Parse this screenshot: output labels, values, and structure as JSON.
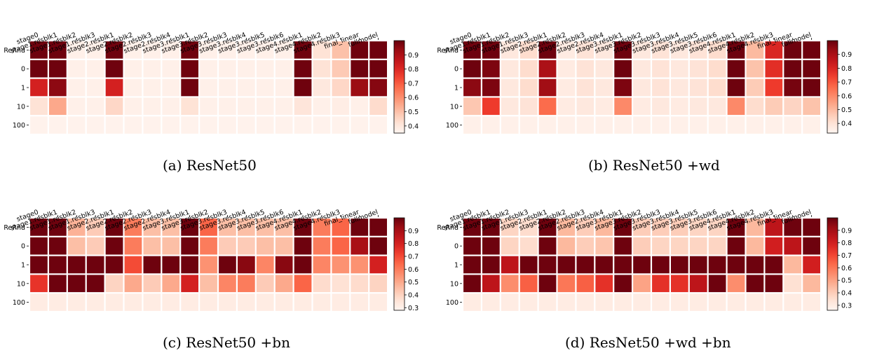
{
  "figure": {
    "panels": [
      {
        "caption": "(a) ResNet50"
      },
      {
        "caption": "(b) ResNet50 +wd"
      },
      {
        "caption": "(c) ResNet50 +bn"
      },
      {
        "caption": "(d) ResNet50 +wd +bn"
      }
    ]
  },
  "chart_data": [
    {
      "type": "heatmap",
      "title": "(a) ResNet50",
      "categories": [
        "stage0",
        "stage1.resblk1",
        "stage1.resblk2",
        "stage1.resblk3",
        "stage2.resblk1",
        "stage2.resblk2",
        "stage2.resblk3",
        "stage2.resblk4",
        "stage3.resblk1",
        "stage3.resblk2",
        "stage3.resblk3",
        "stage3.resblk4",
        "stage3.resblk5",
        "stage3.resblk6",
        "stage4.resblk1",
        "stage4.resblk2",
        "stage4.resblk3",
        "final_linear",
        "fullmodel"
      ],
      "rows": [
        "ReRnd",
        "0",
        "1",
        "10",
        "100"
      ],
      "colorbar": {
        "min": 0.35,
        "max": 1.0,
        "ticks": [
          0.4,
          0.5,
          0.6,
          0.7,
          0.8,
          0.9
        ]
      },
      "values": [
        [
          0.99,
          0.99,
          0.37,
          0.37,
          0.99,
          0.37,
          0.37,
          0.37,
          0.99,
          0.37,
          0.37,
          0.37,
          0.37,
          0.37,
          0.99,
          0.42,
          0.5,
          0.99,
          0.99
        ],
        [
          0.99,
          0.99,
          0.37,
          0.37,
          0.99,
          0.37,
          0.37,
          0.37,
          0.99,
          0.37,
          0.37,
          0.37,
          0.37,
          0.37,
          0.99,
          0.42,
          0.48,
          0.99,
          0.99
        ],
        [
          0.82,
          0.95,
          0.37,
          0.37,
          0.82,
          0.37,
          0.37,
          0.37,
          0.99,
          0.37,
          0.37,
          0.37,
          0.37,
          0.37,
          0.99,
          0.4,
          0.45,
          0.93,
          0.96
        ],
        [
          0.42,
          0.55,
          0.37,
          0.37,
          0.45,
          0.37,
          0.37,
          0.37,
          0.42,
          0.37,
          0.37,
          0.37,
          0.37,
          0.37,
          0.41,
          0.37,
          0.38,
          0.37,
          0.44
        ],
        [
          0.36,
          0.36,
          0.36,
          0.36,
          0.36,
          0.36,
          0.36,
          0.36,
          0.36,
          0.36,
          0.36,
          0.36,
          0.36,
          0.36,
          0.36,
          0.36,
          0.36,
          0.36,
          0.36
        ]
      ],
      "cmap": "Reds"
    },
    {
      "type": "heatmap",
      "title": "(b) ResNet50 +wd",
      "categories": [
        "stage0",
        "stage1.resblk1",
        "stage1.resblk2",
        "stage1.resblk3",
        "stage2.resblk1",
        "stage2.resblk2",
        "stage2.resblk3",
        "stage2.resblk4",
        "stage3.resblk1",
        "stage3.resblk2",
        "stage3.resblk3",
        "stage3.resblk4",
        "stage3.resblk5",
        "stage3.resblk6",
        "stage4.resblk1",
        "stage4.resblk2",
        "stage4.resblk3",
        "final_linear",
        "fullmodel"
      ],
      "rows": [
        "ReRnd",
        "0",
        "1",
        "10",
        "100"
      ],
      "colorbar": {
        "min": 0.33,
        "max": 1.0,
        "ticks": [
          0.4,
          0.5,
          0.6,
          0.7,
          0.8,
          0.9
        ]
      },
      "values": [
        [
          0.99,
          0.99,
          0.38,
          0.42,
          0.99,
          0.37,
          0.4,
          0.38,
          0.99,
          0.38,
          0.4,
          0.38,
          0.4,
          0.42,
          0.99,
          0.5,
          0.8,
          0.99,
          0.99
        ],
        [
          0.99,
          0.97,
          0.38,
          0.42,
          0.9,
          0.37,
          0.4,
          0.38,
          0.99,
          0.38,
          0.4,
          0.38,
          0.4,
          0.42,
          0.99,
          0.48,
          0.78,
          0.99,
          0.99
        ],
        [
          0.95,
          0.97,
          0.38,
          0.42,
          0.92,
          0.37,
          0.4,
          0.38,
          0.97,
          0.38,
          0.4,
          0.38,
          0.4,
          0.42,
          0.99,
          0.46,
          0.75,
          0.98,
          0.99
        ],
        [
          0.47,
          0.75,
          0.38,
          0.4,
          0.66,
          0.37,
          0.38,
          0.37,
          0.6,
          0.37,
          0.38,
          0.37,
          0.38,
          0.38,
          0.6,
          0.42,
          0.46,
          0.44,
          0.48
        ],
        [
          0.35,
          0.35,
          0.35,
          0.35,
          0.35,
          0.35,
          0.35,
          0.35,
          0.35,
          0.35,
          0.35,
          0.35,
          0.35,
          0.35,
          0.35,
          0.35,
          0.35,
          0.35,
          0.35
        ]
      ],
      "cmap": "Reds"
    },
    {
      "type": "heatmap",
      "title": "(c) ResNet50 +bn",
      "categories": [
        "stage0",
        "stage1.resblk1",
        "stage1.resblk2",
        "stage1.resblk3",
        "stage2.resblk1",
        "stage2.resblk2",
        "stage2.resblk3",
        "stage2.resblk4",
        "stage3.resblk1",
        "stage3.resblk2",
        "stage3.resblk3",
        "stage3.resblk4",
        "stage3.resblk5",
        "stage3.resblk6",
        "stage4.resblk1",
        "stage4.resblk2",
        "stage4.resblk3",
        "final_linear",
        "fullmodel"
      ],
      "rows": [
        "ReRnd",
        "0",
        "1",
        "10",
        "100"
      ],
      "colorbar": {
        "min": 0.28,
        "max": 1.0,
        "ticks": [
          0.3,
          0.4,
          0.5,
          0.6,
          0.7,
          0.8,
          0.9
        ]
      },
      "values": [
        [
          0.99,
          0.99,
          0.48,
          0.42,
          0.99,
          0.6,
          0.45,
          0.45,
          0.99,
          0.65,
          0.45,
          0.45,
          0.45,
          0.45,
          0.99,
          0.6,
          0.65,
          0.99,
          0.99
        ],
        [
          0.99,
          0.99,
          0.45,
          0.42,
          0.99,
          0.6,
          0.45,
          0.45,
          0.99,
          0.6,
          0.42,
          0.42,
          0.45,
          0.45,
          0.99,
          0.6,
          0.65,
          0.9,
          0.99
        ],
        [
          0.99,
          0.99,
          0.99,
          0.99,
          0.99,
          0.7,
          0.99,
          0.99,
          0.99,
          0.55,
          0.99,
          0.95,
          0.58,
          0.95,
          0.99,
          0.58,
          0.55,
          0.55,
          0.8
        ],
        [
          0.75,
          0.99,
          0.99,
          0.99,
          0.4,
          0.5,
          0.42,
          0.5,
          0.8,
          0.45,
          0.58,
          0.6,
          0.42,
          0.5,
          0.65,
          0.38,
          0.36,
          0.38,
          0.4
        ],
        [
          0.32,
          0.32,
          0.32,
          0.32,
          0.32,
          0.32,
          0.32,
          0.32,
          0.32,
          0.32,
          0.32,
          0.32,
          0.32,
          0.32,
          0.32,
          0.32,
          0.32,
          0.32,
          0.32
        ]
      ],
      "cmap": "Reds"
    },
    {
      "type": "heatmap",
      "title": "(d) ResNet50 +wd +bn",
      "categories": [
        "stage0",
        "stage1.resblk1",
        "stage1.resblk2",
        "stage1.resblk3",
        "stage2.resblk1",
        "stage2.resblk2",
        "stage2.resblk3",
        "stage2.resblk4",
        "stage3.resblk1",
        "stage3.resblk2",
        "stage3.resblk3",
        "stage3.resblk4",
        "stage3.resblk5",
        "stage3.resblk6",
        "stage4.resblk1",
        "stage4.resblk2",
        "stage4.resblk3",
        "final_linear",
        "fullmodel"
      ],
      "rows": [
        "ReRnd",
        "0",
        "1",
        "10",
        "100"
      ],
      "colorbar": {
        "min": 0.26,
        "max": 1.0,
        "ticks": [
          0.3,
          0.4,
          0.5,
          0.6,
          0.7,
          0.8,
          0.9
        ]
      },
      "values": [
        [
          0.99,
          0.99,
          0.38,
          0.36,
          0.99,
          0.45,
          0.4,
          0.45,
          0.99,
          0.4,
          0.4,
          0.4,
          0.38,
          0.38,
          0.99,
          0.45,
          0.85,
          0.99,
          0.99
        ],
        [
          0.99,
          0.99,
          0.38,
          0.36,
          0.99,
          0.45,
          0.4,
          0.42,
          0.99,
          0.4,
          0.38,
          0.38,
          0.38,
          0.38,
          0.99,
          0.45,
          0.8,
          0.85,
          0.99
        ],
        [
          0.99,
          0.99,
          0.85,
          0.99,
          0.99,
          0.99,
          0.99,
          0.99,
          0.99,
          0.99,
          0.99,
          0.99,
          0.99,
          0.99,
          0.99,
          0.99,
          0.99,
          0.45,
          0.8
        ],
        [
          0.99,
          0.85,
          0.55,
          0.65,
          0.99,
          0.6,
          0.65,
          0.75,
          0.99,
          0.5,
          0.75,
          0.75,
          0.85,
          0.99,
          0.55,
          0.99,
          0.99,
          0.35,
          0.45
        ],
        [
          0.3,
          0.3,
          0.3,
          0.3,
          0.3,
          0.3,
          0.3,
          0.3,
          0.3,
          0.3,
          0.3,
          0.3,
          0.3,
          0.3,
          0.3,
          0.3,
          0.3,
          0.3,
          0.3
        ]
      ],
      "cmap": "Reds"
    }
  ]
}
